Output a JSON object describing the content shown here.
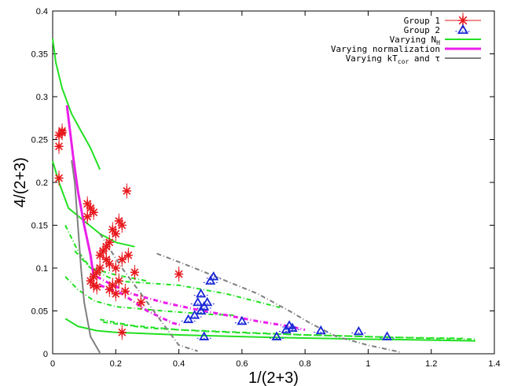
{
  "chart_data": {
    "type": "scatter",
    "title": "",
    "xlabel": "1/(2+3)",
    "ylabel": "4/(2+3)",
    "xlim": [
      0,
      1.4
    ],
    "ylim": [
      0,
      0.4
    ],
    "xticks": [
      0,
      0.2,
      0.4,
      0.6,
      0.8,
      1,
      1.2,
      1.4
    ],
    "yticks": [
      0,
      0.05,
      0.1,
      0.15,
      0.2,
      0.25,
      0.3,
      0.35,
      0.4
    ],
    "xtick_labels": [
      "0",
      "0.2",
      "0.4",
      "0.6",
      "0.8",
      "1",
      "1.2",
      "1.4"
    ],
    "ytick_labels": [
      "0",
      "0.05",
      "0.1",
      "0.15",
      "0.2",
      "0.25",
      "0.3",
      "0.35",
      "0.4"
    ],
    "grid": false,
    "legend_position": "top-right",
    "colors": {
      "group1": "#e8181c",
      "group2": "#1a28d6",
      "nh": "#22e022",
      "norm": "#ea1fea",
      "kt": "#7f7f7f"
    },
    "series": [
      {
        "name": "Group 1",
        "kind": "points",
        "marker": "star",
        "color": "#e8181c",
        "points": [
          [
            0.02,
            0.205
          ],
          [
            0.02,
            0.242
          ],
          [
            0.02,
            0.255
          ],
          [
            0.03,
            0.26
          ],
          [
            0.03,
            0.258
          ],
          [
            0.11,
            0.16
          ],
          [
            0.11,
            0.175
          ],
          [
            0.12,
            0.17
          ],
          [
            0.13,
            0.165
          ],
          [
            0.21,
            0.155
          ],
          [
            0.22,
            0.15
          ],
          [
            0.235,
            0.19
          ],
          [
            0.2,
            0.14
          ],
          [
            0.19,
            0.145
          ],
          [
            0.18,
            0.13
          ],
          [
            0.17,
            0.125
          ],
          [
            0.16,
            0.12
          ],
          [
            0.15,
            0.115
          ],
          [
            0.17,
            0.11
          ],
          [
            0.18,
            0.105
          ],
          [
            0.15,
            0.1
          ],
          [
            0.14,
            0.095
          ],
          [
            0.13,
            0.09
          ],
          [
            0.12,
            0.085
          ],
          [
            0.13,
            0.08
          ],
          [
            0.14,
            0.078
          ],
          [
            0.2,
            0.1
          ],
          [
            0.22,
            0.11
          ],
          [
            0.24,
            0.115
          ],
          [
            0.26,
            0.095
          ],
          [
            0.21,
            0.085
          ],
          [
            0.19,
            0.08
          ],
          [
            0.18,
            0.075
          ],
          [
            0.2,
            0.07
          ],
          [
            0.23,
            0.073
          ],
          [
            0.28,
            0.06
          ],
          [
            0.4,
            0.093
          ],
          [
            0.22,
            0.025
          ]
        ]
      },
      {
        "name": "Group 2",
        "kind": "points",
        "marker": "triangle",
        "color": "#1a28d6",
        "points": [
          [
            0.43,
            0.04
          ],
          [
            0.45,
            0.045
          ],
          [
            0.47,
            0.05
          ],
          [
            0.46,
            0.06
          ],
          [
            0.48,
            0.055
          ],
          [
            0.47,
            0.07
          ],
          [
            0.49,
            0.06
          ],
          [
            0.5,
            0.085
          ],
          [
            0.51,
            0.09
          ],
          [
            0.48,
            0.02
          ],
          [
            0.6,
            0.038
          ],
          [
            0.71,
            0.02
          ],
          [
            0.74,
            0.028
          ],
          [
            0.75,
            0.033
          ],
          [
            0.76,
            0.03
          ],
          [
            0.85,
            0.027
          ],
          [
            0.97,
            0.026
          ],
          [
            1.06,
            0.02
          ]
        ]
      },
      {
        "name": "Varying N_H",
        "kind": "lines",
        "color": "#22e022",
        "lines": [
          {
            "style": "solid",
            "points": [
              [
                0,
                0.368
              ],
              [
                0.01,
                0.34
              ],
              [
                0.03,
                0.31
              ],
              [
                0.06,
                0.28
              ],
              [
                0.09,
                0.26
              ],
              [
                0.12,
                0.24
              ],
              [
                0.15,
                0.215
              ]
            ]
          },
          {
            "style": "solid",
            "points": [
              [
                0,
                0.225
              ],
              [
                0.02,
                0.2
              ],
              [
                0.05,
                0.17
              ],
              [
                0.1,
                0.155
              ],
              [
                0.15,
                0.14
              ],
              [
                0.2,
                0.13
              ],
              [
                0.26,
                0.125
              ]
            ]
          },
          {
            "style": "dashed",
            "points": [
              [
                0.04,
                0.15
              ],
              [
                0.08,
                0.12
              ],
              [
                0.12,
                0.1
              ],
              [
                0.2,
                0.092
              ],
              [
                0.3,
                0.085
              ]
            ]
          },
          {
            "style": "dashed",
            "points": [
              [
                0.07,
                0.12
              ],
              [
                0.12,
                0.1
              ],
              [
                0.2,
                0.085
              ],
              [
                0.4,
                0.08
              ],
              [
                0.55,
                0.07
              ],
              [
                0.72,
                0.054
              ]
            ]
          },
          {
            "style": "dashed",
            "points": [
              [
                0.04,
                0.09
              ],
              [
                0.08,
                0.075
              ],
              [
                0.13,
                0.062
              ],
              [
                0.2,
                0.055
              ],
              [
                0.35,
                0.05
              ],
              [
                0.5,
                0.046
              ],
              [
                0.58,
                0.045
              ]
            ]
          },
          {
            "style": "solid",
            "points": [
              [
                0.04,
                0.041
              ],
              [
                0.08,
                0.032
              ],
              [
                0.14,
                0.027
              ],
              [
                0.2,
                0.025
              ],
              [
                0.4,
                0.022
              ],
              [
                0.7,
                0.019
              ],
              [
                1.0,
                0.017
              ],
              [
                1.2,
                0.016
              ],
              [
                1.34,
                0.015
              ]
            ]
          },
          {
            "style": "dashed",
            "points": [
              [
                0.15,
                0.04
              ],
              [
                0.25,
                0.033
              ],
              [
                0.4,
                0.028
              ],
              [
                0.6,
                0.025
              ],
              [
                0.8,
                0.022
              ],
              [
                1.0,
                0.02
              ],
              [
                1.2,
                0.018
              ],
              [
                1.34,
                0.017
              ]
            ]
          },
          {
            "style": "dashed",
            "points": [
              [
                0.16,
                0.037
              ],
              [
                0.3,
                0.03
              ],
              [
                0.5,
                0.026
              ],
              [
                0.7,
                0.023
              ],
              [
                0.9,
                0.021
              ],
              [
                1.1,
                0.019
              ],
              [
                1.3,
                0.018
              ]
            ]
          }
        ]
      },
      {
        "name": "Varying normalization",
        "kind": "lines",
        "color": "#ea1fea",
        "lines": [
          {
            "style": "solid",
            "points": [
              [
                0.045,
                0.29
              ],
              [
                0.065,
                0.23
              ],
              [
                0.08,
                0.19
              ],
              [
                0.1,
                0.15
              ],
              [
                0.12,
                0.115
              ],
              [
                0.13,
                0.09
              ]
            ]
          },
          {
            "style": "dashed",
            "points": [
              [
                0.14,
                0.09
              ],
              [
                0.18,
                0.082
              ],
              [
                0.25,
                0.07
              ],
              [
                0.35,
                0.06
              ],
              [
                0.45,
                0.052
              ],
              [
                0.55,
                0.045
              ],
              [
                0.65,
                0.038
              ],
              [
                0.75,
                0.032
              ],
              [
                0.8,
                0.028
              ]
            ]
          },
          {
            "style": "dashed",
            "points": [
              [
                0.15,
                0.08
              ],
              [
                0.22,
                0.07
              ],
              [
                0.3,
                0.05
              ],
              [
                0.38,
                0.036
              ],
              [
                0.41,
                0.033
              ]
            ]
          }
        ]
      },
      {
        "name": "Varying kT_cor and tau",
        "kind": "lines",
        "color": "#7f7f7f",
        "lines": [
          {
            "style": "solid",
            "points": [
              [
                0.06,
                0.226
              ],
              [
                0.07,
                0.2
              ],
              [
                0.08,
                0.15
              ],
              [
                0.09,
                0.1
              ],
              [
                0.1,
                0.06
              ],
              [
                0.12,
                0.02
              ],
              [
                0.15,
                0.001
              ]
            ]
          },
          {
            "style": "dashed",
            "points": [
              [
                0.33,
                0.117
              ],
              [
                0.38,
                0.11
              ],
              [
                0.45,
                0.1
              ],
              [
                0.55,
                0.085
              ],
              [
                0.65,
                0.07
              ],
              [
                0.75,
                0.05
              ],
              [
                0.82,
                0.035
              ],
              [
                0.9,
                0.02
              ],
              [
                1.0,
                0.01
              ],
              [
                1.1,
                0.002
              ]
            ]
          },
          {
            "style": "dashed",
            "points": [
              [
                0.15,
                0.14
              ],
              [
                0.22,
                0.1
              ],
              [
                0.3,
                0.06
              ],
              [
                0.36,
                0.03
              ],
              [
                0.4,
                0.01
              ],
              [
                0.46,
                0.003
              ]
            ]
          }
        ]
      }
    ]
  },
  "legend": {
    "entries": [
      {
        "label": "Group 1",
        "sub": "",
        "tail": "",
        "marker": "star",
        "color": "#e8181c",
        "line_width": 0,
        "dashed": false
      },
      {
        "label": "Group 2",
        "sub": "",
        "tail": "",
        "marker": "triangle",
        "color": "#1a28d6",
        "line_width": 0,
        "dashed": false
      },
      {
        "label": "Varying N",
        "sub": "H",
        "tail": "",
        "marker": "line",
        "color": "#22e022",
        "line_width": 2,
        "dashed": false
      },
      {
        "label": "Varying normalization",
        "sub": "",
        "tail": "",
        "marker": "line",
        "color": "#ea1fea",
        "line_width": 3,
        "dashed": false
      },
      {
        "label": "Varying kT",
        "sub": "cor",
        "tail": " and τ",
        "marker": "line",
        "color": "#7f7f7f",
        "line_width": 2,
        "dashed": false
      }
    ]
  }
}
